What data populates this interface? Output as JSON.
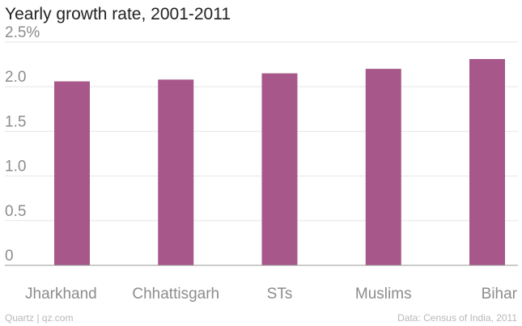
{
  "chart_data": {
    "type": "bar",
    "title": "Yearly growth rate, 2001-2011",
    "categories": [
      "Jharkhand",
      "Chhattisgarh",
      "STs",
      "Muslims",
      "Bihar"
    ],
    "values": [
      2.06,
      2.08,
      2.15,
      2.2,
      2.31
    ],
    "ylim": [
      0,
      2.5
    ],
    "yticks": [
      0,
      0.5,
      1.0,
      1.5,
      2.0,
      2.5
    ],
    "ytick_labels": [
      "0",
      "0.5",
      "1.0",
      "1.5",
      "2.0",
      "2.5%"
    ],
    "grid": true,
    "bar_color": "#a8578a",
    "xlabel": "",
    "ylabel": ""
  },
  "footer": {
    "source": "Quartz | qz.com",
    "credit": "Data: Census of India, 2011"
  }
}
